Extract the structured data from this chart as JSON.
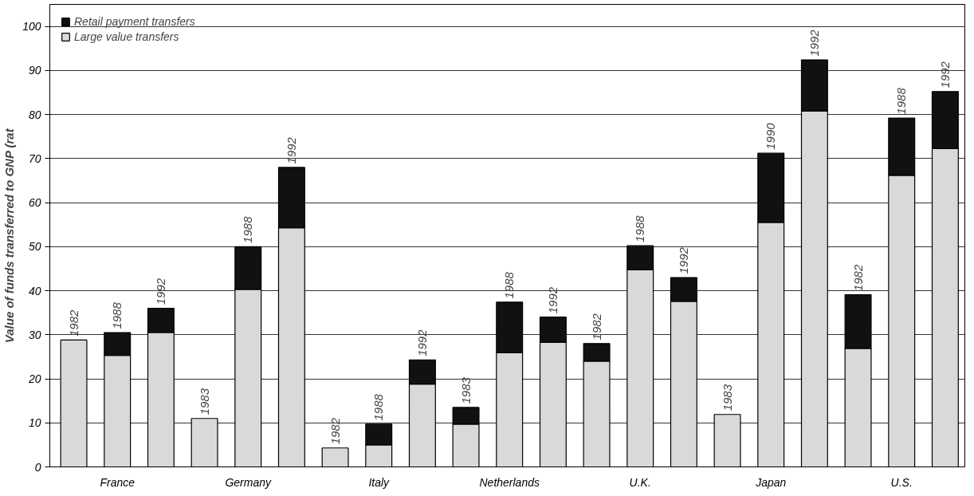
{
  "chart_data": {
    "type": "bar",
    "stacked": true,
    "ylabel": "Value of funds transferred to GNP (rat",
    "categories": [
      null,
      null,
      null,
      null,
      null,
      null,
      null,
      null,
      null,
      null,
      null,
      null,
      null,
      null,
      null,
      null,
      null,
      null,
      null,
      null,
      null
    ],
    "annotations": [
      "1982",
      "1988",
      "1992",
      "1983",
      "1988",
      "1992",
      "1982",
      "1988",
      "1992",
      "1983",
      "1988",
      "1992",
      "1982",
      "1988",
      "1992",
      "1983",
      "1990",
      "1992",
      "1982",
      "1988",
      "1992",
      "France",
      "Germany",
      "Italy",
      "Netherlands",
      "U.K.",
      "Japan",
      "U.S."
    ],
    "series": [
      {
        "name": "Large value transfers",
        "color": "#d9d9d9",
        "values": [
          28.8,
          25.3,
          30.5,
          11,
          40.3,
          54.3,
          4.3,
          5,
          18.8,
          9.7,
          25.9,
          28.3,
          24,
          44.8,
          37.6,
          11.9,
          55.5,
          80.8,
          26.9,
          66.2,
          72.3
        ]
      },
      {
        "name": "Retail payment transfers",
        "color": "#111111",
        "values": [
          null,
          5.2,
          5.5,
          null,
          9.7,
          13.7,
          null,
          4.7,
          5.5,
          3.8,
          11.5,
          5.7,
          4,
          5.4,
          5.4,
          null,
          15.7,
          11.6,
          12.2,
          13,
          12.9
        ]
      }
    ],
    "ylim": [
      0,
      105
    ],
    "yticks": [
      0,
      10,
      20,
      30,
      40,
      50,
      60,
      70,
      80,
      90,
      100
    ],
    "grid": "y",
    "legend": "top left"
  }
}
